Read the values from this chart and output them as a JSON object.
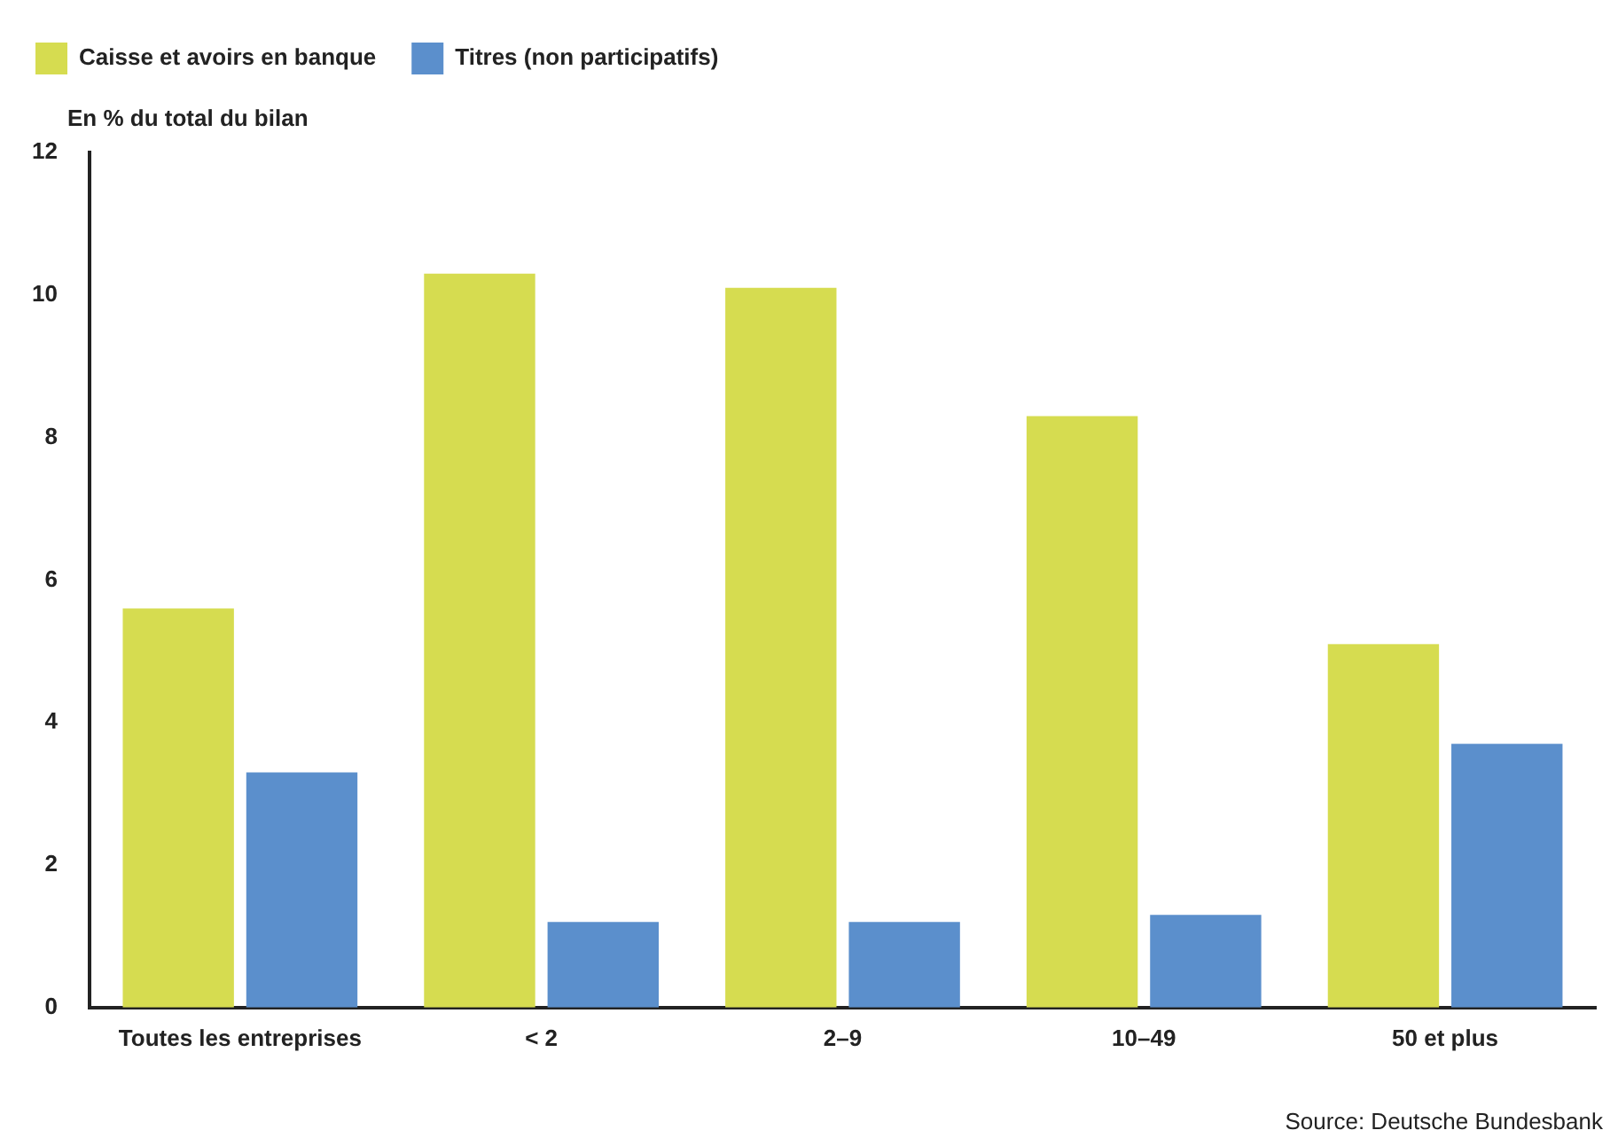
{
  "chart_data": {
    "type": "bar",
    "ylabel": "En % du total du bilan",
    "categories": [
      "Toutes les entreprises",
      "< 2",
      "2–9",
      "10–49",
      "50 et plus"
    ],
    "series": [
      {
        "name": "Caisse et avoirs en banque",
        "color": "#d6dc50",
        "values": [
          5.6,
          10.3,
          10.1,
          8.3,
          5.1
        ]
      },
      {
        "name": "Titres (non participatifs)",
        "color": "#5b8fcc",
        "values": [
          3.3,
          1.2,
          1.2,
          1.3,
          3.7
        ]
      }
    ],
    "ylim": [
      0,
      12
    ],
    "yticks": [
      0,
      2,
      4,
      6,
      8,
      10,
      12
    ],
    "grid": false,
    "legend": "top left",
    "annotations": [
      "Source: Deutsche Bundesbank"
    ]
  }
}
